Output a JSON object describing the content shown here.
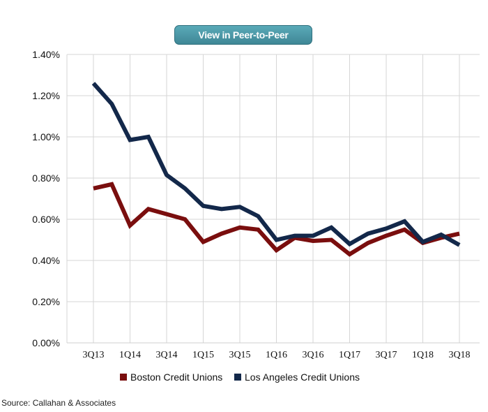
{
  "header": {
    "button_label": "View in Peer-to-Peer"
  },
  "source": "Source: Callahan & Associates",
  "chart_data": {
    "type": "line",
    "title": "",
    "xlabel": "",
    "ylabel": "",
    "categories": [
      "3Q13",
      "4Q13",
      "1Q14",
      "2Q14",
      "3Q14",
      "4Q14",
      "1Q15",
      "2Q15",
      "3Q15",
      "4Q15",
      "1Q16",
      "2Q16",
      "3Q16",
      "4Q16",
      "1Q17",
      "2Q17",
      "3Q17",
      "4Q17",
      "1Q18",
      "2Q18",
      "3Q18"
    ],
    "x_tick_labels": [
      "3Q13",
      "",
      "1Q14",
      "",
      "3Q14",
      "",
      "1Q15",
      "",
      "3Q15",
      "",
      "1Q16",
      "",
      "3Q16",
      "",
      "1Q17",
      "",
      "3Q17",
      "",
      "1Q18",
      "",
      "3Q18"
    ],
    "y_ticks": [
      0,
      0.2,
      0.4,
      0.6,
      0.8,
      1.0,
      1.2,
      1.4
    ],
    "y_tick_labels": [
      "0.00%",
      "0.20%",
      "0.40%",
      "0.60%",
      "0.80%",
      "1.00%",
      "1.20%",
      "1.40%"
    ],
    "ylim": [
      0,
      1.4
    ],
    "y_unit": "%",
    "grid": true,
    "legend_position": "bottom",
    "series": [
      {
        "name": "Boston Credit Unions",
        "color": "#7a0e0e",
        "values": [
          0.75,
          0.77,
          0.57,
          0.65,
          0.625,
          0.6,
          0.49,
          0.53,
          0.56,
          0.55,
          0.45,
          0.51,
          0.495,
          0.5,
          0.43,
          0.485,
          0.52,
          0.55,
          0.485,
          0.51,
          0.53
        ]
      },
      {
        "name": "Los Angeles Credit Unions",
        "color": "#13284a",
        "values": [
          1.26,
          1.16,
          0.985,
          1.0,
          0.815,
          0.75,
          0.665,
          0.65,
          0.66,
          0.615,
          0.5,
          0.52,
          0.52,
          0.56,
          0.48,
          0.53,
          0.555,
          0.59,
          0.49,
          0.525,
          0.475
        ]
      }
    ]
  }
}
